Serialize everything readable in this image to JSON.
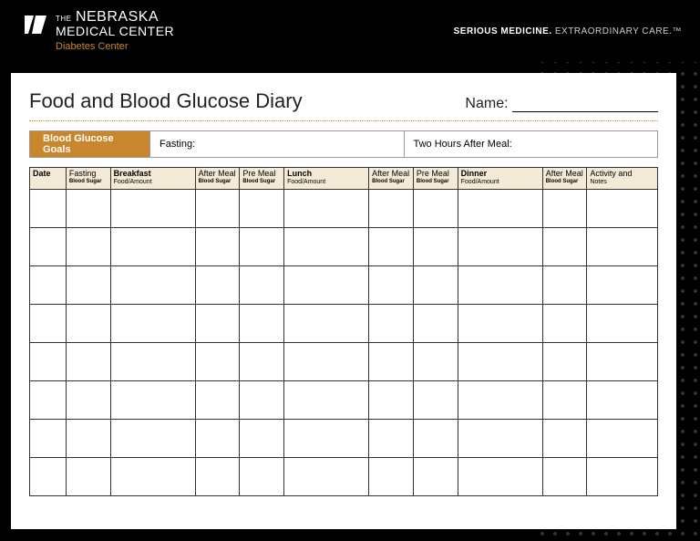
{
  "brand": {
    "the": "THE",
    "line1": "NEBRASKA",
    "line2": "MEDICAL CENTER",
    "sub": "Diabetes Center",
    "logo_color": "#ffffff",
    "sub_color": "#c9872d"
  },
  "tagline": {
    "bold": "SERIOUS MEDICINE.",
    "rest": " EXTRAORDINARY CARE.™"
  },
  "page": {
    "title": "Food and Blood Glucose Diary",
    "name_label": "Name:",
    "background_color": "#ffffff"
  },
  "goals": {
    "label": "Blood Glucose Goals",
    "fasting_label": "Fasting:",
    "after_meal_label": "Two Hours After Meal:",
    "label_bg": "#c9872d"
  },
  "table": {
    "header_bg": "#f5ead6",
    "border_color": "#333333",
    "row_count": 8,
    "columns": [
      {
        "key": "date",
        "main": "Date",
        "bold": true,
        "cls": "col-date"
      },
      {
        "key": "fasting_bs",
        "main": "Fasting",
        "sub": "Blood Sugar",
        "cls": "col-narrow"
      },
      {
        "key": "breakfast",
        "main": "Breakfast",
        "bold": true,
        "sub_light": "Food/Amount",
        "cls": "col-meal"
      },
      {
        "key": "after_bs_1",
        "main": "After Meal",
        "sub": "Blood Sugar",
        "cls": "col-narrow"
      },
      {
        "key": "pre_bs_1",
        "main": "Pre Meal",
        "sub": "Blood Sugar",
        "cls": "col-narrow"
      },
      {
        "key": "lunch",
        "main": "Lunch",
        "bold": true,
        "sub_light": "Food/Amount",
        "cls": "col-meal"
      },
      {
        "key": "after_bs_2",
        "main": "After Meal",
        "sub": "Blood Sugar",
        "cls": "col-narrow"
      },
      {
        "key": "pre_bs_2",
        "main": "Pre Meal",
        "sub": "Blood Sugar",
        "cls": "col-narrow"
      },
      {
        "key": "dinner",
        "main": "Dinner",
        "bold": true,
        "sub_light": "Food/Amount",
        "cls": "col-meal"
      },
      {
        "key": "after_bs_3",
        "main": "After Meal",
        "sub": "Blood Sugar",
        "cls": "col-narrow"
      },
      {
        "key": "notes",
        "main": "Activity and",
        "sub_light": "Notes",
        "cls": "col-notes"
      }
    ]
  }
}
